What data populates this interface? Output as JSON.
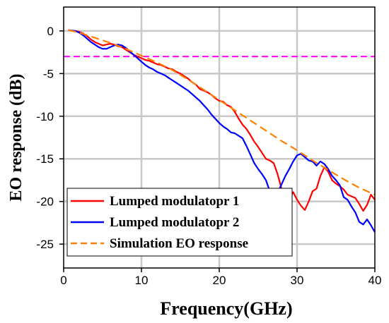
{
  "chart_data": {
    "type": "line",
    "title": "",
    "xlabel": "Frequency(GHz)",
    "ylabel": "EO response (dB)",
    "xlim": [
      0,
      40
    ],
    "ylim": [
      -27.8,
      2.8
    ],
    "x_ticks": [
      0,
      10,
      20,
      30,
      40
    ],
    "y_ticks": [
      0,
      -5,
      -10,
      -15,
      -20,
      -25
    ],
    "x_tick_labels": [
      "0",
      "10",
      "20",
      "30",
      "40"
    ],
    "y_tick_labels": [
      "0",
      "-5",
      "-10",
      "-15",
      "-20",
      "-25"
    ],
    "grid": true,
    "legend_position": "bottom-left",
    "reference_line": {
      "y": -3,
      "color": "#ff00ff",
      "style": "dashed"
    },
    "series": [
      {
        "name": "Lumped modulatopr 1",
        "color": "#ff0000",
        "style": "solid",
        "x": [
          0.6,
          1,
          1.5,
          2,
          2.5,
          3,
          3.5,
          4,
          4.5,
          5,
          5.5,
          6,
          6.5,
          7,
          7.5,
          8,
          8.5,
          9,
          9.5,
          10,
          10.5,
          11,
          11.5,
          12,
          12.5,
          13,
          13.5,
          14,
          14.5,
          15,
          15.5,
          16,
          16.5,
          17,
          17.5,
          18,
          18.5,
          19,
          19.5,
          20,
          20.5,
          21,
          21.5,
          22,
          22.5,
          23,
          23.5,
          24,
          24.5,
          25,
          25.5,
          26,
          26.5,
          27,
          27.5,
          28,
          28.5,
          29,
          29.5,
          30,
          30.5,
          31,
          31.5,
          32,
          32.5,
          33,
          33.5,
          34,
          34.5,
          35,
          35.5,
          36,
          36.5,
          37,
          37.5,
          38,
          38.5,
          39,
          39.5,
          40
        ],
        "values": [
          0.1,
          0.05,
          0,
          -0.1,
          -0.3,
          -0.6,
          -1,
          -1.3,
          -1.5,
          -1.7,
          -1.6,
          -1.5,
          -1.6,
          -1.8,
          -1.9,
          -2.2,
          -2.5,
          -2.8,
          -3,
          -3.2,
          -3.4,
          -3.5,
          -3.7,
          -3.9,
          -4,
          -4.2,
          -4.4,
          -4.5,
          -4.8,
          -5,
          -5.3,
          -5.6,
          -6,
          -6.3,
          -6.8,
          -7,
          -7.2,
          -7.5,
          -7.9,
          -8.2,
          -8.3,
          -8.7,
          -8.9,
          -9.5,
          -10.3,
          -11,
          -11.5,
          -12.2,
          -13,
          -13.6,
          -14.3,
          -15,
          -15.2,
          -15.5,
          -16.8,
          -18.5,
          -20.2,
          -19.7,
          -18.9,
          -19.8,
          -20.5,
          -21,
          -20,
          -18.8,
          -18.5,
          -17,
          -16,
          -16.5,
          -17.5,
          -17.9,
          -18.2,
          -18.6,
          -19.2,
          -19.4,
          -19.6,
          -20.3,
          -21.1,
          -20.4,
          -19.2,
          -19.8
        ]
      },
      {
        "name": "Lumped modulatopr 2",
        "color": "#0000ff",
        "style": "solid",
        "x": [
          0.6,
          1,
          1.5,
          2,
          2.5,
          3,
          3.5,
          4,
          4.5,
          5,
          5.5,
          6,
          6.5,
          7,
          7.5,
          8,
          8.5,
          9,
          9.5,
          10,
          10.5,
          11,
          11.5,
          12,
          12.5,
          13,
          13.5,
          14,
          14.5,
          15,
          15.5,
          16,
          16.5,
          17,
          17.5,
          18,
          18.5,
          19,
          19.5,
          20,
          20.5,
          21,
          21.5,
          22,
          22.5,
          23,
          23.5,
          24,
          24.5,
          25,
          25.5,
          26,
          26.5,
          27,
          27.5,
          28,
          28.5,
          29,
          29.5,
          30,
          30.5,
          31,
          31.5,
          32,
          32.5,
          33,
          33.5,
          34,
          34.5,
          35,
          35.5,
          36,
          36.5,
          37,
          37.5,
          38,
          38.5,
          39,
          39.5,
          40
        ],
        "values": [
          0.1,
          0.05,
          0,
          -0.2,
          -0.5,
          -0.9,
          -1.3,
          -1.6,
          -1.9,
          -2.1,
          -2.1,
          -1.9,
          -1.7,
          -1.6,
          -1.7,
          -2,
          -2.4,
          -2.8,
          -3.2,
          -3.6,
          -4,
          -4.3,
          -4.5,
          -4.8,
          -5,
          -5.2,
          -5.5,
          -5.8,
          -6.1,
          -6.4,
          -6.7,
          -7,
          -7.4,
          -7.8,
          -8.2,
          -8.7,
          -9.2,
          -9.8,
          -10.3,
          -10.8,
          -11.2,
          -11.5,
          -11.9,
          -12,
          -12.3,
          -12.6,
          -13.5,
          -14.5,
          -15.5,
          -16.2,
          -16.8,
          -17.5,
          -18.8,
          -20.2,
          -19,
          -18,
          -17,
          -16.2,
          -15.3,
          -14.6,
          -14.4,
          -14.8,
          -15.2,
          -15.3,
          -15.8,
          -15.3,
          -15.6,
          -16.2,
          -17,
          -17.5,
          -18.1,
          -19.5,
          -19.8,
          -20.6,
          -21.3,
          -22.4,
          -22.7,
          -22.1,
          -22.8,
          -23.6
        ]
      },
      {
        "name": "Simulation EO response",
        "color": "#ff8000",
        "style": "dashed",
        "x": [
          0.6,
          2,
          4,
          6,
          8,
          10,
          12,
          14,
          16,
          18,
          20,
          22,
          24,
          26,
          28,
          30,
          32,
          34,
          36,
          38,
          40
        ],
        "values": [
          0.1,
          -0.2,
          -0.8,
          -1.4,
          -2.1,
          -2.9,
          -3.7,
          -4.6,
          -5.7,
          -6.9,
          -8.1,
          -9.3,
          -10.5,
          -11.7,
          -12.9,
          -14,
          -15.2,
          -16.3,
          -17.4,
          -18.4,
          -19.2
        ]
      }
    ]
  }
}
